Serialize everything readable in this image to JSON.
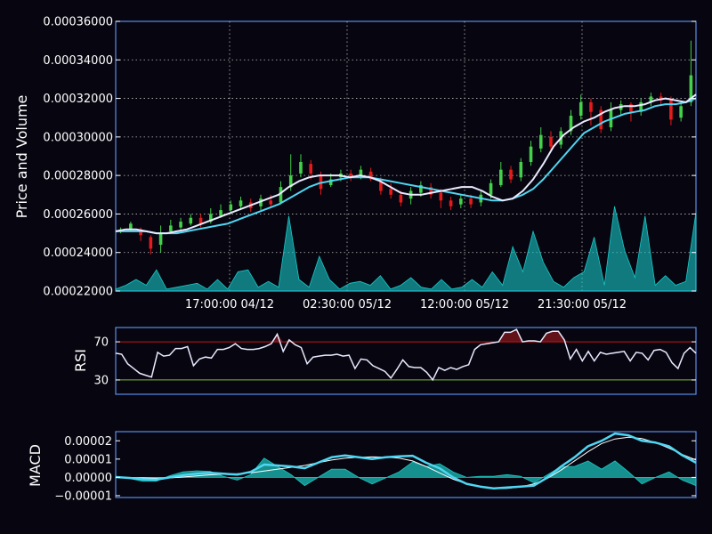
{
  "chart_data": [
    {
      "type": "candlestick",
      "ylabel": "Price and Volume",
      "ylim": [
        0.00022,
        0.00036
      ],
      "yticks": [
        "0.00022000",
        "0.00024000",
        "0.00026000",
        "0.00028000",
        "0.00030000",
        "0.00032000",
        "0.00034000",
        "0.00036000"
      ],
      "xticks": [
        "17:00:00 04/12",
        "02:30:00 05/12",
        "12:00:00 05/12",
        "21:30:00 05/12"
      ],
      "ma_fast": [
        0.000251,
        0.000252,
        0.000252,
        0.000251,
        0.00025,
        0.00025,
        0.000251,
        0.000252,
        0.000254,
        0.000256,
        0.000258,
        0.00026,
        0.000262,
        0.000264,
        0.000266,
        0.000268,
        0.00027,
        0.000274,
        0.000277,
        0.000279,
        0.00028,
        0.00028,
        0.00028,
        0.000279,
        0.00028,
        0.000279,
        0.000277,
        0.000274,
        0.000271,
        0.00027,
        0.00027,
        0.000271,
        0.000272,
        0.000273,
        0.000274,
        0.000274,
        0.000272,
        0.000269,
        0.000267,
        0.000268,
        0.000272,
        0.000278,
        0.000286,
        0.000295,
        0.000301,
        0.000305,
        0.000308,
        0.00031,
        0.000313,
        0.000315,
        0.000316,
        0.000316,
        0.000317,
        0.000319,
        0.00032,
        0.000319,
        0.000318,
        0.000322
      ],
      "ma_slow": [
        0.000251,
        0.000251,
        0.000251,
        0.000251,
        0.00025,
        0.00025,
        0.00025,
        0.000251,
        0.000252,
        0.000253,
        0.000254,
        0.000255,
        0.000257,
        0.000259,
        0.000261,
        0.000263,
        0.000265,
        0.000268,
        0.000271,
        0.000274,
        0.000276,
        0.000277,
        0.000278,
        0.000279,
        0.000279,
        0.000279,
        0.000278,
        0.000277,
        0.000276,
        0.000275,
        0.000274,
        0.000273,
        0.000272,
        0.000271,
        0.00027,
        0.000269,
        0.000268,
        0.000267,
        0.000267,
        0.000268,
        0.00027,
        0.000273,
        0.000278,
        0.000284,
        0.00029,
        0.000296,
        0.000302,
        0.000305,
        0.000308,
        0.00031,
        0.000312,
        0.000313,
        0.000314,
        0.000316,
        0.000317,
        0.000317,
        0.000318,
        0.00032
      ],
      "candles": [
        [
          0.000251,
          0.000252,
          0.000253,
          0.00025
        ],
        [
          0.000252,
          0.000255,
          0.000256,
          0.000251
        ],
        [
          0.000252,
          0.000249,
          0.000253,
          0.000246
        ],
        [
          0.000248,
          0.000242,
          0.000249,
          0.000239
        ],
        [
          0.000244,
          0.00025,
          0.000254,
          0.00024
        ],
        [
          0.000251,
          0.000254,
          0.000257,
          0.00025
        ],
        [
          0.000253,
          0.000256,
          0.000258,
          0.000252
        ],
        [
          0.000255,
          0.000258,
          0.00026,
          0.000254
        ],
        [
          0.000258,
          0.000255,
          0.00026,
          0.000253
        ],
        [
          0.000256,
          0.00026,
          0.000263,
          0.000255
        ],
        [
          0.000259,
          0.000262,
          0.000265,
          0.000258
        ],
        [
          0.000262,
          0.000265,
          0.000267,
          0.00026
        ],
        [
          0.000264,
          0.000267,
          0.000269,
          0.000262
        ],
        [
          0.000266,
          0.000263,
          0.000268,
          0.000261
        ],
        [
          0.000264,
          0.000268,
          0.00027,
          0.000262
        ],
        [
          0.000267,
          0.000265,
          0.00027,
          0.000263
        ],
        [
          0.000266,
          0.000274,
          0.000277,
          0.000265
        ],
        [
          0.000274,
          0.00028,
          0.000291,
          0.000272
        ],
        [
          0.000281,
          0.000287,
          0.000291,
          0.000279
        ],
        [
          0.000286,
          0.000281,
          0.000288,
          0.000278
        ],
        [
          0.00028,
          0.000273,
          0.000282,
          0.00027
        ],
        [
          0.000275,
          0.000278,
          0.000281,
          0.000274
        ],
        [
          0.000279,
          0.000281,
          0.000283,
          0.000277
        ],
        [
          0.000281,
          0.000279,
          0.000283,
          0.000277
        ],
        [
          0.00028,
          0.000283,
          0.000285,
          0.000278
        ],
        [
          0.000282,
          0.000278,
          0.000284,
          0.000277
        ],
        [
          0.000277,
          0.000272,
          0.000279,
          0.00027
        ],
        [
          0.000273,
          0.00027,
          0.000276,
          0.000268
        ],
        [
          0.00027,
          0.000266,
          0.000272,
          0.000264
        ],
        [
          0.000268,
          0.000272,
          0.000274,
          0.000265
        ],
        [
          0.000271,
          0.000275,
          0.000277,
          0.000269
        ],
        [
          0.000274,
          0.00027,
          0.000276,
          0.000268
        ],
        [
          0.000271,
          0.000267,
          0.000273,
          0.000263
        ],
        [
          0.000267,
          0.000264,
          0.000269,
          0.000262
        ],
        [
          0.000265,
          0.000268,
          0.00027,
          0.000263
        ],
        [
          0.000268,
          0.000265,
          0.00027,
          0.000263
        ],
        [
          0.000266,
          0.00027,
          0.000272,
          0.000264
        ],
        [
          0.00027,
          0.000276,
          0.000278,
          0.000268
        ],
        [
          0.000275,
          0.000283,
          0.000287,
          0.000274
        ],
        [
          0.000283,
          0.000278,
          0.000285,
          0.000276
        ],
        [
          0.000279,
          0.000287,
          0.000289,
          0.000277
        ],
        [
          0.000287,
          0.000295,
          0.000298,
          0.000285
        ],
        [
          0.000294,
          0.000301,
          0.000305,
          0.000292
        ],
        [
          0.0003,
          0.000295,
          0.000303,
          0.000293
        ],
        [
          0.000296,
          0.000303,
          0.000305,
          0.000294
        ],
        [
          0.000303,
          0.000311,
          0.000314,
          0.000301
        ],
        [
          0.000311,
          0.000318,
          0.000322,
          0.000309
        ],
        [
          0.000318,
          0.000313,
          0.00032,
          0.000306
        ],
        [
          0.000314,
          0.000304,
          0.000316,
          0.000302
        ],
        [
          0.000305,
          0.000314,
          0.000318,
          0.000303
        ],
        [
          0.000314,
          0.000317,
          0.000319,
          0.000311
        ],
        [
          0.000317,
          0.000313,
          0.000318,
          0.000308
        ],
        [
          0.000313,
          0.000318,
          0.00032,
          0.000311
        ],
        [
          0.000318,
          0.000321,
          0.000323,
          0.000316
        ],
        [
          0.000321,
          0.000319,
          0.000323,
          0.000316
        ],
        [
          0.000319,
          0.000309,
          0.000321,
          0.000306
        ],
        [
          0.00031,
          0.000316,
          0.000318,
          0.000308
        ],
        [
          0.000318,
          0.000332,
          0.00035,
          0.000316
        ]
      ],
      "volume": [
        0.000221,
        0.000223,
        0.000226,
        0.000223,
        0.000231,
        0.000221,
        0.000222,
        0.000223,
        0.000224,
        0.000221,
        0.000226,
        0.000221,
        0.00023,
        0.000231,
        0.000222,
        0.000225,
        0.000222,
        0.000259,
        0.000226,
        0.000222,
        0.000238,
        0.000226,
        0.000221,
        0.000224,
        0.000225,
        0.000223,
        0.000228,
        0.000221,
        0.000223,
        0.000227,
        0.000222,
        0.000221,
        0.000226,
        0.000221,
        0.000222,
        0.000226,
        0.000222,
        0.00023,
        0.000223,
        0.000243,
        0.00023,
        0.000251,
        0.000235,
        0.000225,
        0.000222,
        0.000227,
        0.00023,
        0.000248,
        0.000223,
        0.000264,
        0.000241,
        0.000227,
        0.000259,
        0.000223,
        0.000228,
        0.000223,
        0.000225,
        0.000261
      ],
      "vol_color": "#19c8c8",
      "line_fast_color": "#eaeaff",
      "line_slow_color": "#4fd6f2",
      "up_color": "#43d04b",
      "down_color": "#e51b1b",
      "grid": true
    },
    {
      "type": "line",
      "ylabel": "RSI",
      "ylim": [
        15,
        85
      ],
      "yticks": [
        "30",
        "70"
      ],
      "overbought": 70,
      "oversold": 30,
      "values": [
        58,
        57,
        47,
        42,
        37,
        35,
        33,
        59,
        55,
        56,
        63,
        63,
        65,
        45,
        52,
        54,
        53,
        62,
        62,
        64,
        68,
        63,
        62,
        62,
        63,
        65,
        68,
        78,
        60,
        72,
        67,
        64,
        47,
        54,
        55,
        56,
        56,
        57,
        55,
        56,
        42,
        52,
        51,
        45,
        42,
        39,
        32,
        41,
        51,
        44,
        43,
        43,
        38,
        30,
        43,
        40,
        43,
        41,
        44,
        46,
        62,
        67,
        68,
        69,
        70,
        80,
        80,
        83,
        70,
        71,
        71,
        70,
        79,
        81,
        81,
        72,
        52,
        62,
        50,
        60,
        50,
        59,
        57,
        58,
        59,
        60,
        50,
        59,
        58,
        51,
        61,
        62,
        59,
        48,
        42,
        58,
        64,
        58
      ],
      "line_color": "#e8eaff",
      "over_line_color": "#c0191a",
      "under_line_color": "#7bbf3a",
      "fill_color": "#6e141a"
    },
    {
      "type": "line",
      "ylabel": "MACD",
      "ylim": [
        -1.1e-05,
        2.5e-05
      ],
      "yticks": [
        "−0.00001",
        "0.00000",
        "0.00001",
        "0.00002"
      ],
      "macd": [
        2e-07,
        -3e-07,
        -1e-06,
        -1.2e-06,
        0.0,
        1.2e-06,
        2e-06,
        2.5e-06,
        2e-06,
        1.5e-06,
        3e-06,
        7e-06,
        6.5e-06,
        6e-06,
        5e-06,
        8e-06,
        1.1e-05,
        1.2e-05,
        1.1e-05,
        1e-05,
        1.1e-05,
        1.15e-05,
        1.18e-05,
        8e-06,
        5e-06,
        0.0,
        -3.5e-06,
        -5e-06,
        -6e-06,
        -5.5e-06,
        -5e-06,
        -4.5e-06,
        0.0,
        6e-06,
        1.1e-05,
        1.7e-05,
        2e-05,
        2.4e-05,
        2.3e-05,
        2e-05,
        1.9e-05,
        1.7e-05,
        1.2e-05,
        8e-06
      ],
      "signal": [
        0.0,
        -1e-07,
        -3e-07,
        -5e-07,
        -3e-07,
        2e-07,
        8e-07,
        1.4e-06,
        1.8e-06,
        2e-06,
        2.5e-06,
        3.5e-06,
        4.5e-06,
        5.5e-06,
        6.5e-06,
        8e-06,
        9.5e-06,
        1.05e-05,
        1.1e-05,
        1.12e-05,
        1.11e-05,
        1.05e-05,
        9e-06,
        6e-06,
        2.5e-06,
        -1e-06,
        -3.5e-06,
        -5.2e-06,
        -6.2e-06,
        -6e-06,
        -5.2e-06,
        -3.5e-06,
        -5e-07,
        4e-06,
        9e-06,
        1.4e-05,
        1.85e-05,
        2.1e-05,
        2.2e-05,
        2.12e-05,
        1.9e-05,
        1.6e-05,
        1.25e-05,
        9.5e-06
      ],
      "hist": [
        2e-07,
        -2e-07,
        -7e-07,
        -7e-07,
        3e-07,
        1e-06,
        1.2e-06,
        1.1e-06,
        2e-07,
        -5e-07,
        5e-07,
        3.5e-06,
        2e-06,
        5e-07,
        -1.5e-06,
        0.0,
        1.5e-06,
        1.5e-06,
        0.0,
        -1.2e-06,
        -1e-07,
        1e-06,
        2.8e-06,
        2e-06,
        2.5e-06,
        1e-06,
        0.0,
        2e-07,
        2e-07,
        5e-07,
        2e-07,
        -1e-06,
        5e-07,
        2e-06,
        2e-06,
        3e-06,
        1.5e-06,
        3e-06,
        1e-06,
        -1.2e-06,
        0.0,
        1e-06,
        -5e-07,
        -1.5e-06
      ],
      "macd_color": "#4fd6f2",
      "signal_color": "#ffffff",
      "hist_color": "#19a9a6"
    }
  ]
}
